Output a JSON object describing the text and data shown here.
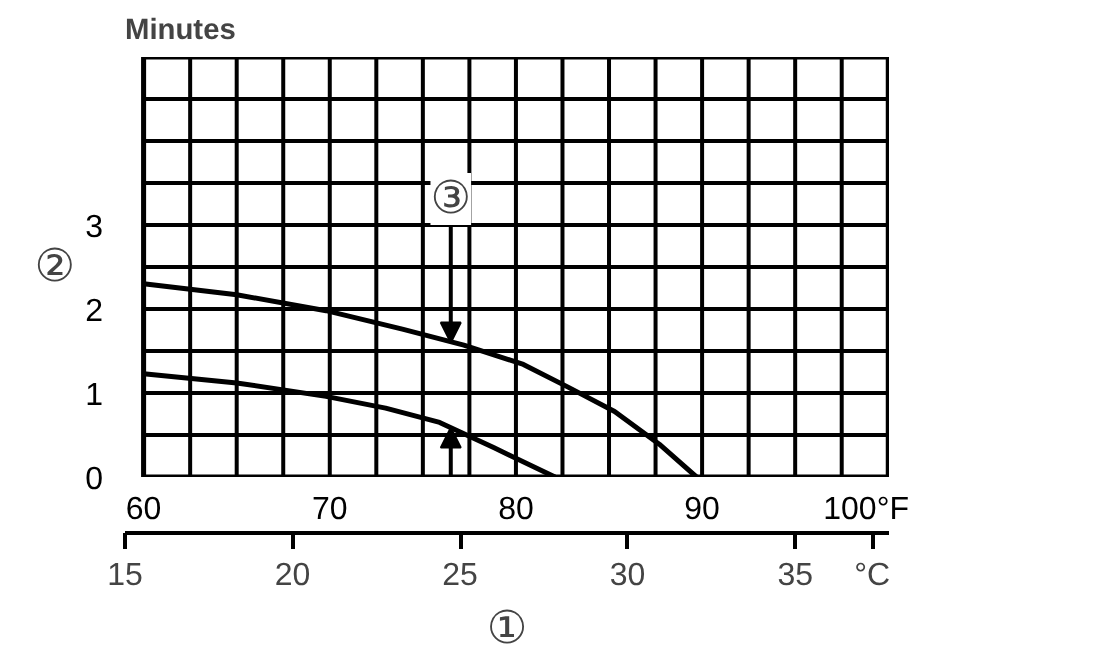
{
  "chart_data": {
    "type": "line",
    "ylabel": "Minutes",
    "x2label": "°C",
    "xlim": [
      60,
      100
    ],
    "ylim": [
      0,
      5
    ],
    "xticks": [
      60,
      {
        "value": 62.5,
        "label": null
      },
      {
        "value": 65,
        "label": null
      },
      {
        "value": 67.5,
        "label": null
      },
      70,
      {
        "value": 72.5,
        "label": null
      },
      {
        "value": 75,
        "label": null
      },
      {
        "value": 77.5,
        "label": null
      },
      80,
      {
        "value": 82.5,
        "label": null
      },
      {
        "value": 85,
        "label": null
      },
      {
        "value": 87.5,
        "label": null
      },
      90,
      {
        "value": 92.5,
        "label": null
      },
      {
        "value": 95,
        "label": null
      },
      {
        "value": 97.5,
        "label": null
      },
      {
        "value": 100,
        "label": "100°F"
      }
    ],
    "yticks": [
      0,
      {
        "value": 0.5,
        "label": null
      },
      1,
      {
        "value": 1.5,
        "label": null
      },
      2,
      {
        "value": 2.5,
        "label": null
      },
      3,
      {
        "value": 3.5,
        "label": null
      },
      {
        "value": 4,
        "label": null
      },
      {
        "value": 4.5,
        "label": null
      },
      {
        "value": 5,
        "label": null
      }
    ],
    "x2lim": [
      15,
      37.8
    ],
    "x2ticks": [
      15,
      20,
      25,
      30,
      35
    ],
    "grid": true,
    "series": [
      {
        "color": "#000000",
        "x": [
          60,
          65,
          69.8,
          73.9,
          77.2,
          80.4,
          82.8,
          85.3,
          87.7,
          89.7
        ],
        "values": [
          2.3,
          2.17,
          1.98,
          1.76,
          1.57,
          1.34,
          1.07,
          0.78,
          0.39,
          0
        ]
      },
      {
        "color": "#000000",
        "x": [
          60,
          65,
          69.8,
          73,
          75.9,
          78.8,
          82.1
        ],
        "values": [
          1.23,
          1.12,
          0.96,
          0.82,
          0.65,
          0.35,
          0
        ]
      }
    ],
    "annotations": [
      "①",
      "②",
      {
        "text": "③",
        "x": 76.5,
        "y": 1.6
      }
    ]
  }
}
